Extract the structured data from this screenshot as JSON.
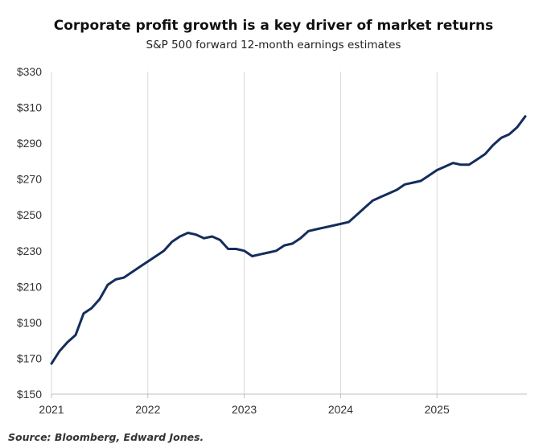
{
  "chart_data": {
    "type": "line",
    "title": "Corporate profit growth is a key driver of market returns",
    "subtitle": "S&P 500 forward 12-month earnings estimates",
    "source": "Source: Bloomberg, Edward Jones.",
    "xlabel": "",
    "ylabel": "",
    "x_ticks": [
      "2021",
      "2022",
      "2023",
      "2024",
      "2025"
    ],
    "y_ticks": [
      "$150",
      "$170",
      "$190",
      "$210",
      "$230",
      "$250",
      "$270",
      "$290",
      "$310",
      "$330"
    ],
    "ylim": [
      150,
      330
    ],
    "xlim": [
      "2021-01",
      "2025-12"
    ],
    "grid": "vertical at year ticks",
    "line_color": "#142d5c",
    "series": [
      {
        "x": [
          "2021-01",
          "2021-02",
          "2021-03",
          "2021-04",
          "2021-05",
          "2021-06",
          "2021-07",
          "2021-08",
          "2021-09",
          "2021-10",
          "2021-11",
          "2021-12",
          "2022-01",
          "2022-02",
          "2022-03",
          "2022-04",
          "2022-05",
          "2022-06",
          "2022-07",
          "2022-08",
          "2022-09",
          "2022-10",
          "2022-11",
          "2022-12",
          "2023-01",
          "2023-02",
          "2023-03",
          "2023-04",
          "2023-05",
          "2023-06",
          "2023-07",
          "2023-08",
          "2023-09",
          "2023-10",
          "2023-11",
          "2023-12",
          "2024-01",
          "2024-02",
          "2024-03",
          "2024-04",
          "2024-05",
          "2024-06",
          "2024-07",
          "2024-08",
          "2024-09",
          "2024-10",
          "2024-11",
          "2024-12",
          "2025-01",
          "2025-02",
          "2025-03",
          "2025-04",
          "2025-05",
          "2025-06",
          "2025-07",
          "2025-08",
          "2025-09",
          "2025-10",
          "2025-11",
          "2025-12"
        ],
        "values": [
          167,
          174,
          179,
          183,
          195,
          198,
          203,
          211,
          214,
          215,
          218,
          221,
          224,
          227,
          230,
          235,
          238,
          240,
          239,
          237,
          238,
          236,
          231,
          231,
          230,
          227,
          228,
          229,
          230,
          233,
          234,
          237,
          241,
          242,
          243,
          244,
          245,
          246,
          250,
          254,
          258,
          260,
          262,
          264,
          267,
          268,
          269,
          272,
          275,
          277,
          279,
          278,
          278,
          281,
          284,
          289,
          293,
          295,
          299,
          305
        ]
      }
    ]
  }
}
